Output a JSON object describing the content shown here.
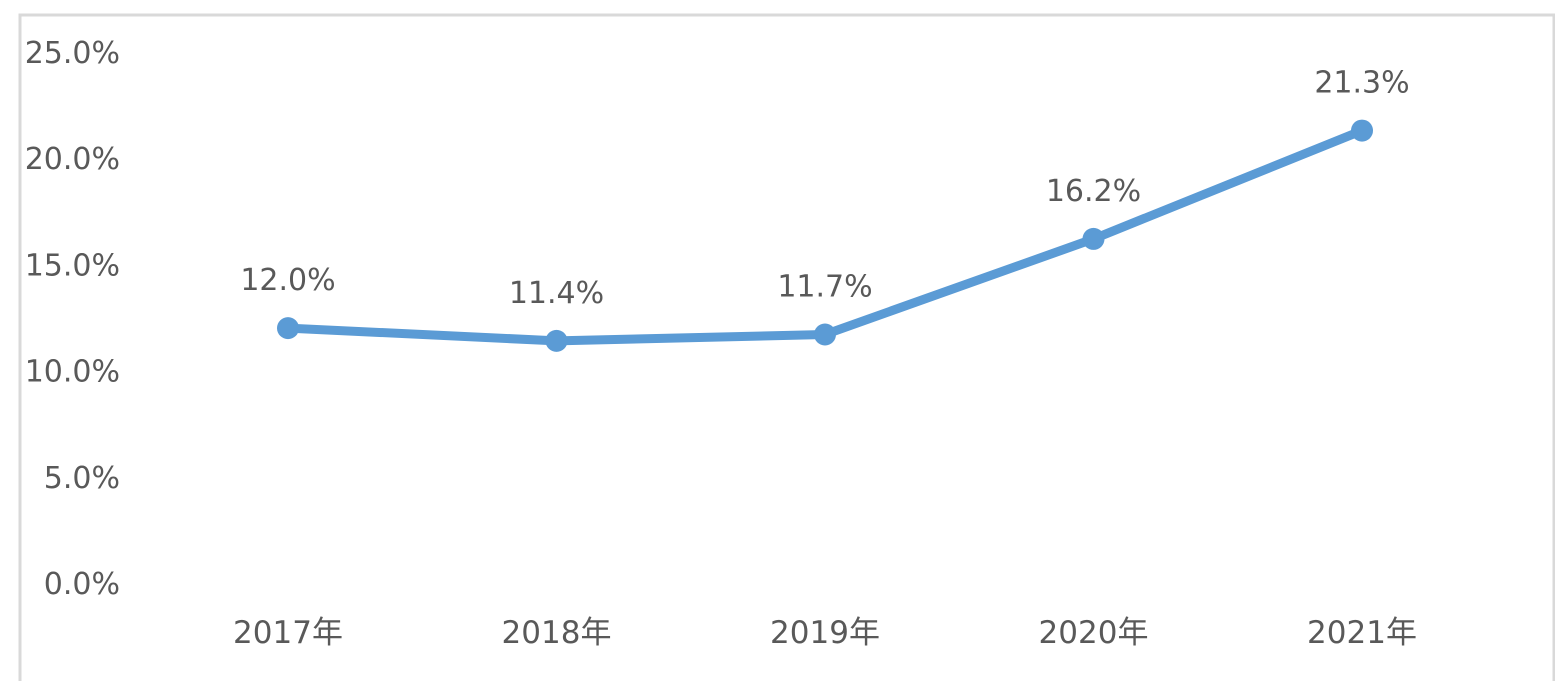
{
  "chart_data": {
    "type": "line",
    "title": "",
    "xlabel": "",
    "ylabel": "",
    "categories": [
      "2017年",
      "2018年",
      "2019年",
      "2020年",
      "2021年"
    ],
    "series": [
      {
        "values": [
          12.0,
          11.4,
          11.7,
          16.2,
          21.3
        ],
        "data_labels": [
          "12.0%",
          "11.4%",
          "11.7%",
          "16.2%",
          "21.3%"
        ],
        "color": "#5B9BD5",
        "markers": true
      }
    ],
    "y_ticks": [
      "0.0%",
      "5.0%",
      "10.0%",
      "15.0%",
      "20.0%",
      "25.0%"
    ],
    "ylim": [
      0,
      25
    ],
    "grid": false,
    "legend": "none"
  },
  "colors": {
    "series": "#5B9BD5",
    "text": "#595959",
    "frame": "#D9D9D9"
  }
}
